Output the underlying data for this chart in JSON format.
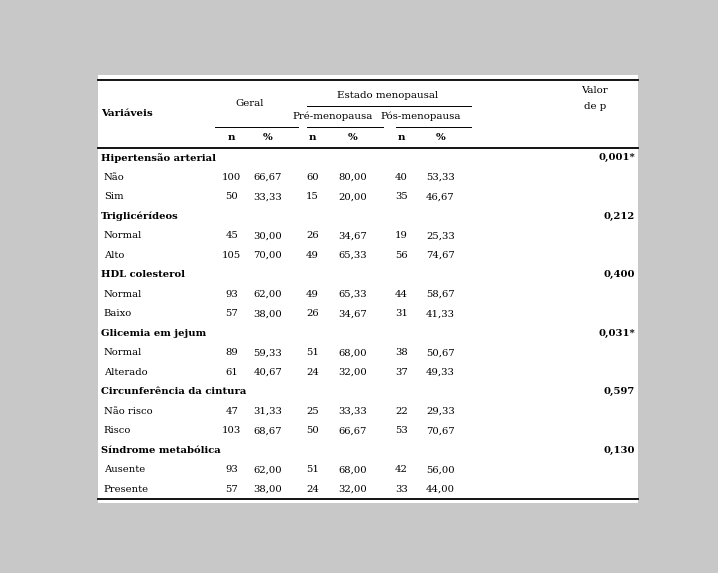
{
  "bg_color": "#c8c8c8",
  "table_bg": "#ffffff",
  "sections": [
    {
      "category": "Hipertensão arterial",
      "valor_p": "0,001*",
      "rows": [
        [
          "Não",
          "100",
          "66,67",
          "60",
          "80,00",
          "40",
          "53,33"
        ],
        [
          "Sim",
          "50",
          "33,33",
          "15",
          "20,00",
          "35",
          "46,67"
        ]
      ]
    },
    {
      "category": "Triglicérídeos",
      "valor_p": "0,212",
      "rows": [
        [
          "Normal",
          "45",
          "30,00",
          "26",
          "34,67",
          "19",
          "25,33"
        ],
        [
          "Alto",
          "105",
          "70,00",
          "49",
          "65,33",
          "56",
          "74,67"
        ]
      ]
    },
    {
      "category": "HDL colesterol",
      "valor_p": "0,400",
      "rows": [
        [
          "Normal",
          "93",
          "62,00",
          "49",
          "65,33",
          "44",
          "58,67"
        ],
        [
          "Baixo",
          "57",
          "38,00",
          "26",
          "34,67",
          "31",
          "41,33"
        ]
      ]
    },
    {
      "category": "Glicemia em jejum",
      "valor_p": "0,031*",
      "rows": [
        [
          "Normal",
          "89",
          "59,33",
          "51",
          "68,00",
          "38",
          "50,67"
        ],
        [
          "Alterado",
          "61",
          "40,67",
          "24",
          "32,00",
          "37",
          "49,33"
        ]
      ]
    },
    {
      "category": "Circunferência da cintura",
      "valor_p": "0,597",
      "rows": [
        [
          "Não risco",
          "47",
          "31,33",
          "25",
          "33,33",
          "22",
          "29,33"
        ],
        [
          "Risco",
          "103",
          "68,67",
          "50",
          "66,67",
          "53",
          "70,67"
        ]
      ]
    },
    {
      "category": "Síndrome metabólica",
      "valor_p": "0,130",
      "rows": [
        [
          "Ausente",
          "93",
          "62,00",
          "51",
          "68,00",
          "42",
          "56,00"
        ],
        [
          "Presente",
          "57",
          "38,00",
          "24",
          "32,00",
          "33",
          "44,00"
        ]
      ]
    }
  ],
  "font_size": 7.2,
  "header_font_size": 7.4
}
